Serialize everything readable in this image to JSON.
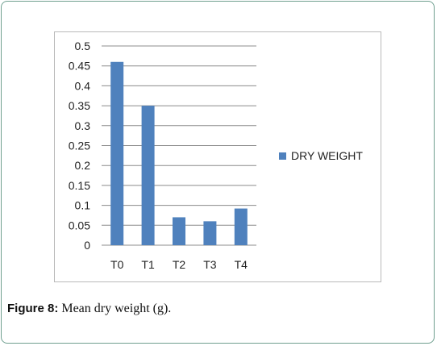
{
  "chart_data": {
    "type": "bar",
    "categories": [
      "T0",
      "T1",
      "T2",
      "T3",
      "T4"
    ],
    "series": [
      {
        "name": "DRY WEIGHT",
        "values": [
          0.46,
          0.35,
          0.07,
          0.06,
          0.092
        ]
      }
    ],
    "ylim": [
      0,
      0.5
    ],
    "yticks": [
      "0",
      "0.05",
      "0.1",
      "0.15",
      "0.2",
      "0.25",
      "0.3",
      "0.35",
      "0.4",
      "0.45",
      "0.5"
    ],
    "ytick_values": [
      0,
      0.05,
      0.1,
      0.15,
      0.2,
      0.25,
      0.3,
      0.35,
      0.4,
      0.45,
      0.5
    ],
    "grid": true,
    "legend": "right",
    "bar_color": "#4f81bd"
  },
  "caption": {
    "label": "Figure 8:",
    "text": " Mean dry weight (g)."
  },
  "colors": {
    "frame_border": "#6f9f8f",
    "gridline": "#8c8c8c"
  }
}
